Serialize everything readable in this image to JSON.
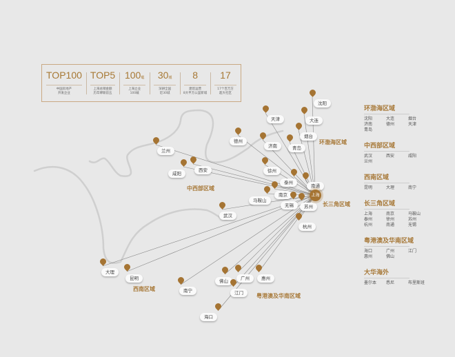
{
  "stats": [
    {
      "value": "TOP100",
      "unit": "",
      "caption": [
        "中国房地产",
        "开发企业"
      ]
    },
    {
      "value": "TOP5",
      "unit": "",
      "caption": [
        "上海总销金额",
        "历年蝉联前五"
      ]
    },
    {
      "value": "100",
      "unit": "载",
      "caption": [
        "上海立业",
        "100载"
      ]
    },
    {
      "value": "30",
      "unit": "城",
      "caption": [
        "深耕全国",
        "近30城"
      ]
    },
    {
      "value": "8",
      "unit": "",
      "caption": [
        "建筑运营",
        "8大平方公里新城"
      ]
    },
    {
      "value": "17",
      "unit": "",
      "caption": [
        "17个百万方",
        "超大社区"
      ]
    }
  ],
  "hub": "上海",
  "cities": [
    "沈阳",
    "天津",
    "大连",
    "烟台",
    "德州",
    "济南",
    "青岛",
    "兰州",
    "咸阳",
    "西安",
    "徐州",
    "泰州",
    "南通",
    "南京",
    "马鞍山",
    "无锡",
    "苏州",
    "武汉",
    "杭州",
    "大理",
    "昆明",
    "南宁",
    "佛山",
    "广州",
    "惠州",
    "江门",
    "海口"
  ],
  "regions": [
    "环渤海区域",
    "中西部区域",
    "长三角区域",
    "西南区域",
    "粤港澳及华南区域"
  ],
  "panel": [
    {
      "title": "环渤海区域",
      "items": [
        "沈阳",
        "大连",
        "烟台",
        "济南",
        "德州",
        "天津",
        "青岛"
      ]
    },
    {
      "title": "中西部区域",
      "items": [
        "武汉",
        "西安",
        "咸阳",
        "兰州"
      ]
    },
    {
      "title": "西南区域",
      "items": [
        "昆明",
        "大理",
        "南宁"
      ]
    },
    {
      "title": "长三角区域",
      "items": [
        "上海",
        "南京",
        "马鞍山",
        "泰州",
        "徐州",
        "苏州",
        "杭州",
        "南通",
        "无锡"
      ]
    },
    {
      "title": "粤港澳及华南区域",
      "items": [
        "海口",
        "广州",
        "江门",
        "惠州",
        "佛山"
      ]
    },
    {
      "title": "大华海外",
      "items": [
        "墨尔本",
        "悉尼",
        "布里斯班"
      ]
    }
  ],
  "colors": {
    "accent": "#a87a3a",
    "background": "#e8e8e8"
  }
}
